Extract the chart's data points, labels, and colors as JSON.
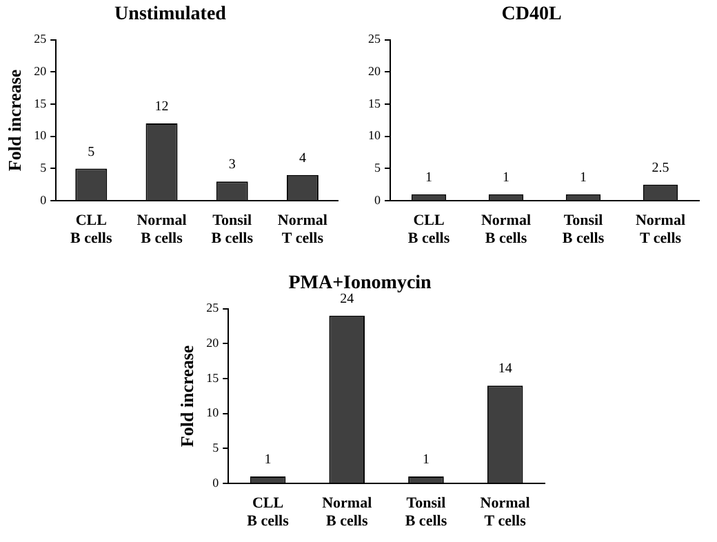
{
  "chart_data": [
    {
      "type": "bar",
      "title": "Unstimulated",
      "ylabel": "Fold increase",
      "categories": [
        "CLL B cells",
        "Normal B cells",
        "Tonsil B cells",
        "Normal T cells"
      ],
      "values": [
        5,
        12,
        3,
        4
      ],
      "color": "#404040",
      "ylim": [
        0,
        25
      ],
      "yticks": [
        0,
        5,
        10,
        15,
        20,
        25
      ],
      "data_labels": true,
      "grid": false,
      "legend": false
    },
    {
      "type": "bar",
      "title": "CD40L",
      "categories": [
        "CLL B cells",
        "Normal B cells",
        "Tonsil B cells",
        "Normal T cells"
      ],
      "values": [
        1,
        1,
        1,
        2.5
      ],
      "color": "#404040",
      "ylim": [
        0,
        25
      ],
      "yticks": [
        0,
        5,
        10,
        15,
        20,
        25
      ],
      "data_labels": true,
      "grid": false,
      "legend": false
    },
    {
      "type": "bar",
      "title": "PMA+Ionomycin",
      "ylabel": "Fold increase",
      "categories": [
        "CLL B cells",
        "Normal B cells",
        "Tonsil B cells",
        "Normal T cells"
      ],
      "values": [
        1,
        24,
        1,
        14
      ],
      "color": "#404040",
      "ylim": [
        0,
        25
      ],
      "yticks": [
        0,
        5,
        10,
        15,
        20,
        25
      ],
      "data_labels": true,
      "grid": false,
      "legend": false
    }
  ]
}
